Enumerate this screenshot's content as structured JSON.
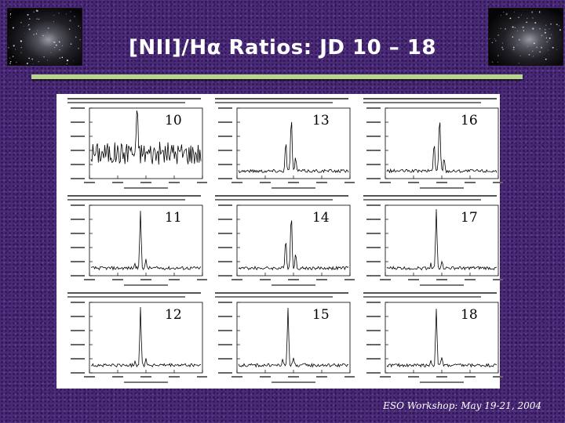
{
  "slide": {
    "title": "[NII]/Hα Ratios: JD 10 – 18",
    "footer": "ESO Workshop: May 19-21, 2004"
  },
  "panels": [
    {
      "label": "10",
      "type": "noisy"
    },
    {
      "label": "13",
      "type": "double"
    },
    {
      "label": "16",
      "type": "double"
    },
    {
      "label": "11",
      "type": "single"
    },
    {
      "label": "14",
      "type": "double"
    },
    {
      "label": "17",
      "type": "single"
    },
    {
      "label": "12",
      "type": "single"
    },
    {
      "label": "15",
      "type": "single"
    },
    {
      "label": "18",
      "type": "single"
    }
  ],
  "colors": {
    "background": "#4a2a78",
    "rule": "#b7d68a",
    "text": "#ffffff"
  }
}
